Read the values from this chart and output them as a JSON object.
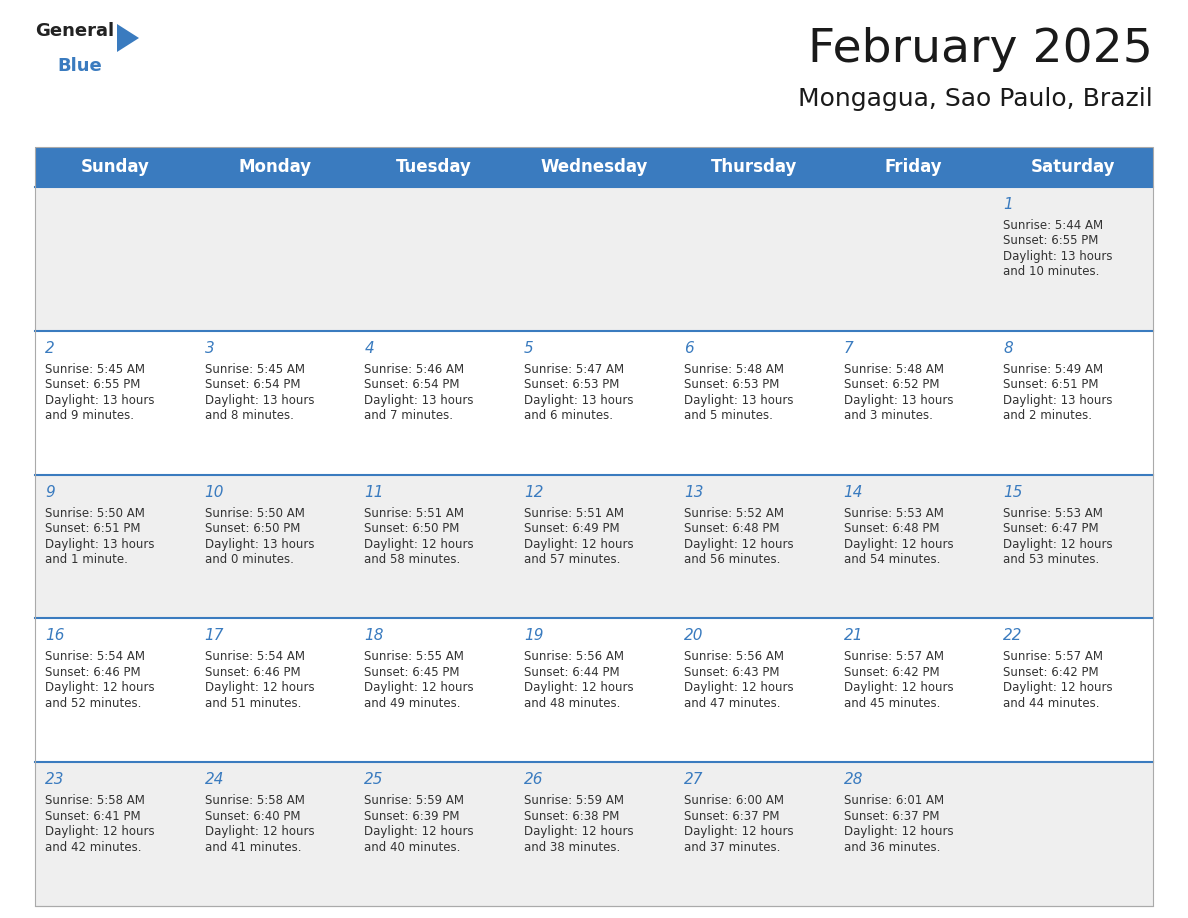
{
  "title": "February 2025",
  "subtitle": "Mongagua, Sao Paulo, Brazil",
  "header_color": "#3a7bbf",
  "header_text_color": "#ffffff",
  "bg_color": "#ffffff",
  "cell_bg_even": "#efefef",
  "cell_bg_odd": "#ffffff",
  "day_number_color": "#3a7bbf",
  "cell_text_color": "#333333",
  "border_color": "#3a7bbf",
  "weekdays": [
    "Sunday",
    "Monday",
    "Tuesday",
    "Wednesday",
    "Thursday",
    "Friday",
    "Saturday"
  ],
  "title_fontsize": 34,
  "subtitle_fontsize": 18,
  "header_fontsize": 12,
  "day_number_fontsize": 11,
  "cell_text_fontsize": 8.5,
  "calendar_data": {
    "1": {
      "sunrise": "5:44 AM",
      "sunset": "6:55 PM",
      "daylight_h": "13 hours",
      "daylight_m": "and 10 minutes."
    },
    "2": {
      "sunrise": "5:45 AM",
      "sunset": "6:55 PM",
      "daylight_h": "13 hours",
      "daylight_m": "and 9 minutes."
    },
    "3": {
      "sunrise": "5:45 AM",
      "sunset": "6:54 PM",
      "daylight_h": "13 hours",
      "daylight_m": "and 8 minutes."
    },
    "4": {
      "sunrise": "5:46 AM",
      "sunset": "6:54 PM",
      "daylight_h": "13 hours",
      "daylight_m": "and 7 minutes."
    },
    "5": {
      "sunrise": "5:47 AM",
      "sunset": "6:53 PM",
      "daylight_h": "13 hours",
      "daylight_m": "and 6 minutes."
    },
    "6": {
      "sunrise": "5:48 AM",
      "sunset": "6:53 PM",
      "daylight_h": "13 hours",
      "daylight_m": "and 5 minutes."
    },
    "7": {
      "sunrise": "5:48 AM",
      "sunset": "6:52 PM",
      "daylight_h": "13 hours",
      "daylight_m": "and 3 minutes."
    },
    "8": {
      "sunrise": "5:49 AM",
      "sunset": "6:51 PM",
      "daylight_h": "13 hours",
      "daylight_m": "and 2 minutes."
    },
    "9": {
      "sunrise": "5:50 AM",
      "sunset": "6:51 PM",
      "daylight_h": "13 hours",
      "daylight_m": "and 1 minute."
    },
    "10": {
      "sunrise": "5:50 AM",
      "sunset": "6:50 PM",
      "daylight_h": "13 hours",
      "daylight_m": "and 0 minutes."
    },
    "11": {
      "sunrise": "5:51 AM",
      "sunset": "6:50 PM",
      "daylight_h": "12 hours",
      "daylight_m": "and 58 minutes."
    },
    "12": {
      "sunrise": "5:51 AM",
      "sunset": "6:49 PM",
      "daylight_h": "12 hours",
      "daylight_m": "and 57 minutes."
    },
    "13": {
      "sunrise": "5:52 AM",
      "sunset": "6:48 PM",
      "daylight_h": "12 hours",
      "daylight_m": "and 56 minutes."
    },
    "14": {
      "sunrise": "5:53 AM",
      "sunset": "6:48 PM",
      "daylight_h": "12 hours",
      "daylight_m": "and 54 minutes."
    },
    "15": {
      "sunrise": "5:53 AM",
      "sunset": "6:47 PM",
      "daylight_h": "12 hours",
      "daylight_m": "and 53 minutes."
    },
    "16": {
      "sunrise": "5:54 AM",
      "sunset": "6:46 PM",
      "daylight_h": "12 hours",
      "daylight_m": "and 52 minutes."
    },
    "17": {
      "sunrise": "5:54 AM",
      "sunset": "6:46 PM",
      "daylight_h": "12 hours",
      "daylight_m": "and 51 minutes."
    },
    "18": {
      "sunrise": "5:55 AM",
      "sunset": "6:45 PM",
      "daylight_h": "12 hours",
      "daylight_m": "and 49 minutes."
    },
    "19": {
      "sunrise": "5:56 AM",
      "sunset": "6:44 PM",
      "daylight_h": "12 hours",
      "daylight_m": "and 48 minutes."
    },
    "20": {
      "sunrise": "5:56 AM",
      "sunset": "6:43 PM",
      "daylight_h": "12 hours",
      "daylight_m": "and 47 minutes."
    },
    "21": {
      "sunrise": "5:57 AM",
      "sunset": "6:42 PM",
      "daylight_h": "12 hours",
      "daylight_m": "and 45 minutes."
    },
    "22": {
      "sunrise": "5:57 AM",
      "sunset": "6:42 PM",
      "daylight_h": "12 hours",
      "daylight_m": "and 44 minutes."
    },
    "23": {
      "sunrise": "5:58 AM",
      "sunset": "6:41 PM",
      "daylight_h": "12 hours",
      "daylight_m": "and 42 minutes."
    },
    "24": {
      "sunrise": "5:58 AM",
      "sunset": "6:40 PM",
      "daylight_h": "12 hours",
      "daylight_m": "and 41 minutes."
    },
    "25": {
      "sunrise": "5:59 AM",
      "sunset": "6:39 PM",
      "daylight_h": "12 hours",
      "daylight_m": "and 40 minutes."
    },
    "26": {
      "sunrise": "5:59 AM",
      "sunset": "6:38 PM",
      "daylight_h": "12 hours",
      "daylight_m": "and 38 minutes."
    },
    "27": {
      "sunrise": "6:00 AM",
      "sunset": "6:37 PM",
      "daylight_h": "12 hours",
      "daylight_m": "and 37 minutes."
    },
    "28": {
      "sunrise": "6:01 AM",
      "sunset": "6:37 PM",
      "daylight_h": "12 hours",
      "daylight_m": "and 36 minutes."
    }
  },
  "week_rows": [
    [
      null,
      null,
      null,
      null,
      null,
      null,
      1
    ],
    [
      2,
      3,
      4,
      5,
      6,
      7,
      8
    ],
    [
      9,
      10,
      11,
      12,
      13,
      14,
      15
    ],
    [
      16,
      17,
      18,
      19,
      20,
      21,
      22
    ],
    [
      23,
      24,
      25,
      26,
      27,
      28,
      null
    ]
  ]
}
